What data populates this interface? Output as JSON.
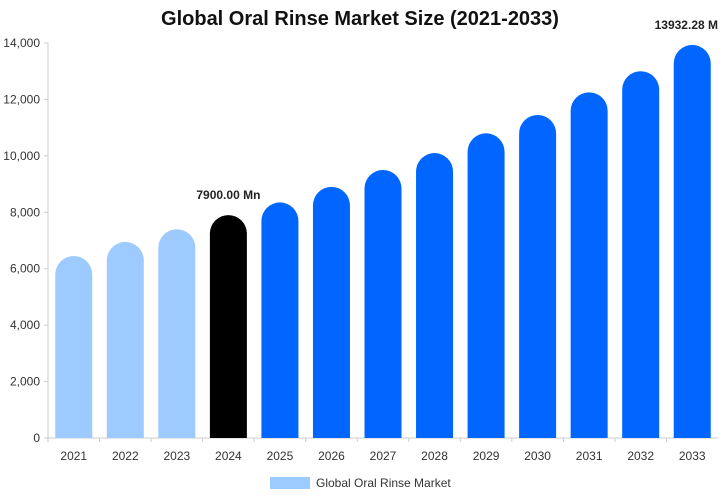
{
  "chart_data": {
    "type": "bar",
    "title": "Global Oral Rinse Market Size (2021-2033)",
    "xlabel": "",
    "ylabel": "",
    "categories": [
      "2021",
      "2022",
      "2023",
      "2024",
      "2025",
      "2026",
      "2027",
      "2028",
      "2029",
      "2030",
      "2031",
      "2032",
      "2033"
    ],
    "series": [
      {
        "name": "Global Oral Rinse Market",
        "values": [
          6450,
          6950,
          7400,
          7900,
          8350,
          8900,
          9500,
          10100,
          10800,
          11450,
          12250,
          13000,
          13932.28
        ]
      }
    ],
    "ylim": [
      0,
      14000
    ],
    "yticks": [
      0,
      2000,
      4000,
      6000,
      8000,
      10000,
      12000,
      14000
    ],
    "ytick_labels": [
      "0",
      "2,000",
      "4,000",
      "6,000",
      "8,000",
      "10,000",
      "12,000",
      "14,000"
    ],
    "data_labels": [
      {
        "category": "2024",
        "text": "7900.00 Mn"
      },
      {
        "category": "2033",
        "text": "13932.28 M"
      }
    ],
    "colors": {
      "historical": "#9ecbff",
      "current": "#000000",
      "forecast": "#0066ff",
      "legend_swatch": "#9ecbff"
    },
    "grid": false,
    "legend_position": "bottom"
  }
}
